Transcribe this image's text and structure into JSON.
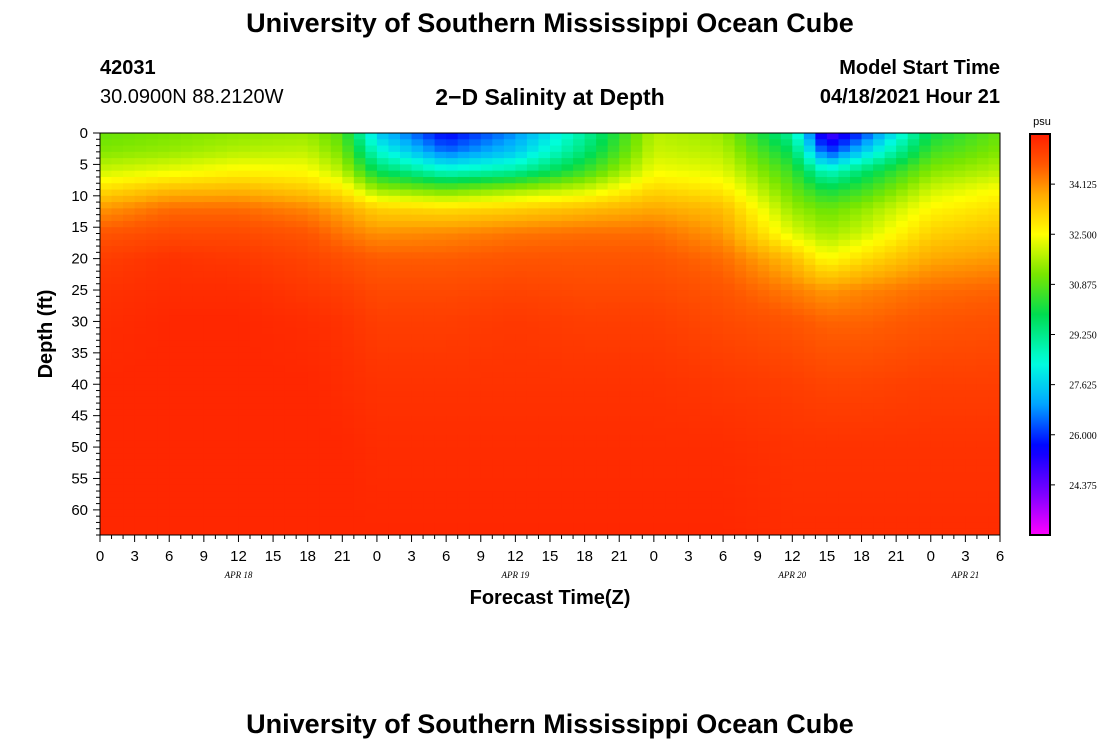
{
  "header": {
    "title": "University of Southern Mississippi Ocean Cube",
    "station_id": "42031",
    "location": "30.0900N  88.2120W",
    "plot_title": "2−D Salinity at Depth",
    "model_start_label": "Model Start Time",
    "model_start_value": "04/18/2021 Hour 21"
  },
  "footer": {
    "title": "University of Southern Mississippi Ocean Cube"
  },
  "chart_data": {
    "type": "heatmap",
    "title": "2−D Salinity at Depth",
    "xlabel": "Forecast Time(Z)",
    "ylabel": "Depth (ft)",
    "x_unit": "hours from APR 18 00Z",
    "xlim": [
      0,
      78
    ],
    "ylim": [
      0,
      64
    ],
    "x_ticks": [
      0,
      3,
      6,
      9,
      12,
      15,
      18,
      21,
      24,
      27,
      30,
      33,
      36,
      39,
      42,
      45,
      48,
      51,
      54,
      57,
      60,
      63,
      66,
      69,
      72,
      75,
      78
    ],
    "x_tick_labels": [
      "0",
      "3",
      "6",
      "9",
      "12",
      "15",
      "18",
      "21",
      "0",
      "3",
      "6",
      "9",
      "12",
      "15",
      "18",
      "21",
      "0",
      "3",
      "6",
      "9",
      "12",
      "15",
      "18",
      "21",
      "0",
      "3",
      "6"
    ],
    "y_ticks": [
      0,
      5,
      10,
      15,
      20,
      25,
      30,
      35,
      40,
      45,
      50,
      55,
      60
    ],
    "y_tick_labels": [
      "0",
      "5",
      "10",
      "15",
      "20",
      "25",
      "30",
      "35",
      "40",
      "45",
      "50",
      "55",
      "60"
    ],
    "date_labels": [
      {
        "text": "APR 18",
        "x": 12
      },
      {
        "text": "APR 19",
        "x": 36
      },
      {
        "text": "APR 20",
        "x": 60
      },
      {
        "text": "APR 21",
        "x": 75
      }
    ],
    "colorbar": {
      "unit": "psu",
      "range": [
        22.75,
        35.75
      ],
      "ticks": [
        34.125,
        32.5,
        30.875,
        29.25,
        27.625,
        26.0,
        24.375
      ],
      "tick_labels": [
        "34.125",
        "32.500",
        "30.875",
        "29.250",
        "27.625",
        "26.000",
        "24.375"
      ]
    },
    "time_hours": [
      0,
      6,
      12,
      18,
      21,
      24,
      30,
      36,
      42,
      48,
      54,
      60,
      63,
      66,
      72,
      78
    ],
    "depth_ft": [
      0,
      3,
      6,
      9,
      12,
      16,
      20,
      25,
      30,
      40,
      50,
      64
    ],
    "salinity_psu": [
      [
        31.0,
        31.2,
        31.4,
        31.5,
        30.8,
        27.5,
        25.5,
        26.8,
        29.0,
        31.8,
        31.5,
        29.0,
        24.5,
        26.0,
        30.0,
        31.0
      ],
      [
        31.3,
        31.5,
        31.8,
        31.9,
        31.2,
        28.5,
        26.5,
        27.5,
        29.5,
        32.0,
        31.8,
        29.8,
        26.0,
        27.5,
        30.6,
        31.3
      ],
      [
        32.0,
        32.3,
        32.6,
        32.5,
        31.8,
        29.8,
        28.5,
        29.0,
        30.5,
        32.4,
        32.2,
        30.5,
        28.5,
        29.5,
        31.3,
        31.8
      ],
      [
        33.0,
        33.5,
        33.6,
        33.3,
        32.8,
        31.5,
        31.0,
        31.5,
        32.0,
        33.1,
        32.8,
        31.0,
        30.0,
        30.5,
        32.0,
        32.5
      ],
      [
        34.0,
        34.5,
        34.5,
        34.2,
        33.8,
        33.2,
        33.0,
        33.2,
        33.5,
        33.8,
        33.5,
        31.5,
        31.0,
        31.4,
        32.6,
        33.0
      ],
      [
        34.8,
        35.0,
        35.0,
        34.8,
        34.4,
        34.1,
        34.2,
        34.4,
        34.5,
        34.5,
        34.0,
        32.2,
        31.6,
        32.0,
        33.2,
        33.5
      ],
      [
        35.2,
        35.4,
        35.3,
        35.1,
        34.9,
        34.7,
        34.7,
        34.8,
        34.8,
        34.8,
        34.5,
        33.5,
        32.5,
        33.0,
        33.8,
        34.0
      ],
      [
        35.4,
        35.5,
        35.5,
        35.3,
        35.2,
        35.0,
        35.0,
        35.1,
        35.0,
        35.0,
        34.8,
        34.3,
        34.0,
        34.2,
        34.5,
        34.6
      ],
      [
        35.5,
        35.6,
        35.6,
        35.5,
        35.4,
        35.2,
        35.2,
        35.3,
        35.2,
        35.2,
        35.0,
        34.8,
        34.6,
        34.6,
        34.8,
        34.9
      ],
      [
        35.6,
        35.6,
        35.6,
        35.6,
        35.5,
        35.4,
        35.4,
        35.4,
        35.4,
        35.4,
        35.3,
        35.2,
        35.1,
        35.1,
        35.2,
        35.2
      ],
      [
        35.6,
        35.6,
        35.6,
        35.6,
        35.6,
        35.5,
        35.5,
        35.5,
        35.5,
        35.5,
        35.5,
        35.4,
        35.4,
        35.4,
        35.4,
        35.4
      ],
      [
        35.6,
        35.6,
        35.6,
        35.6,
        35.6,
        35.6,
        35.6,
        35.6,
        35.6,
        35.6,
        35.6,
        35.5,
        35.5,
        35.5,
        35.5,
        35.5
      ]
    ]
  }
}
